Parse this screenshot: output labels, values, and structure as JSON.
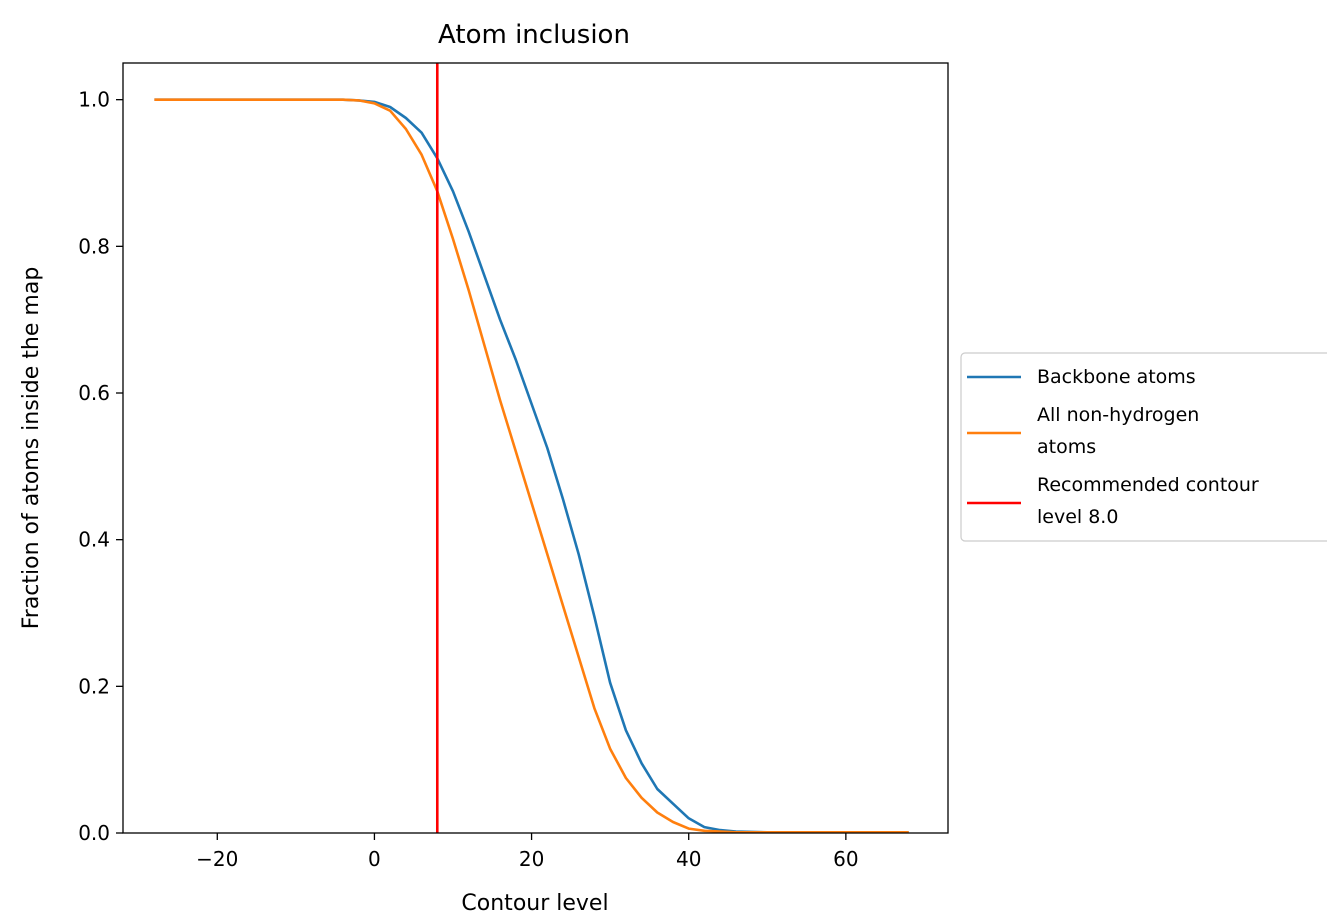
{
  "chart_data": {
    "type": "line",
    "title": "Atom inclusion",
    "xlabel": "Contour level",
    "ylabel": "Fraction of atoms inside the map",
    "xlim": [
      -32,
      73
    ],
    "ylim": [
      0.0,
      1.05
    ],
    "xticks": [
      -20,
      0,
      20,
      40,
      60
    ],
    "xtick_labels": [
      "−20",
      "0",
      "20",
      "40",
      "60"
    ],
    "yticks": [
      0.0,
      0.2,
      0.4,
      0.6,
      0.8,
      1.0
    ],
    "ytick_labels": [
      "0.0",
      "0.2",
      "0.4",
      "0.6",
      "0.8",
      "1.0"
    ],
    "grid": false,
    "legend_position": "center-right outside",
    "series": [
      {
        "name": "Backbone atoms",
        "color": "#1f77b4",
        "x": [
          -28,
          -20,
          -10,
          -4,
          -2,
          0,
          2,
          4,
          6,
          8,
          10,
          12,
          14,
          16,
          18,
          20,
          22,
          24,
          26,
          28,
          30,
          32,
          34,
          36,
          38,
          40,
          42,
          44,
          46,
          50,
          55,
          60,
          68
        ],
        "y": [
          1.0,
          1.0,
          1.0,
          1.0,
          0.999,
          0.997,
          0.99,
          0.975,
          0.955,
          0.92,
          0.875,
          0.82,
          0.76,
          0.7,
          0.645,
          0.585,
          0.525,
          0.455,
          0.38,
          0.295,
          0.205,
          0.14,
          0.095,
          0.06,
          0.04,
          0.02,
          0.008,
          0.004,
          0.002,
          0.001,
          0.001,
          0.001,
          0.001
        ]
      },
      {
        "name": "All non-hydrogen\n atoms",
        "color": "#ff7f0e",
        "x": [
          -28,
          -20,
          -10,
          -4,
          -2,
          0,
          2,
          4,
          6,
          8,
          10,
          12,
          14,
          16,
          18,
          20,
          22,
          24,
          26,
          28,
          30,
          32,
          34,
          36,
          38,
          40,
          42,
          44,
          46,
          50,
          55,
          60,
          68
        ],
        "y": [
          1.0,
          1.0,
          1.0,
          1.0,
          0.999,
          0.995,
          0.985,
          0.96,
          0.925,
          0.875,
          0.81,
          0.74,
          0.665,
          0.59,
          0.52,
          0.45,
          0.38,
          0.31,
          0.24,
          0.17,
          0.115,
          0.075,
          0.048,
          0.028,
          0.015,
          0.006,
          0.003,
          0.002,
          0.001,
          0.001,
          0.001,
          0.001,
          0.001
        ]
      },
      {
        "name": "Recommended contour\n level 8.0",
        "color": "#ff0000",
        "vline": 8.0
      }
    ]
  }
}
